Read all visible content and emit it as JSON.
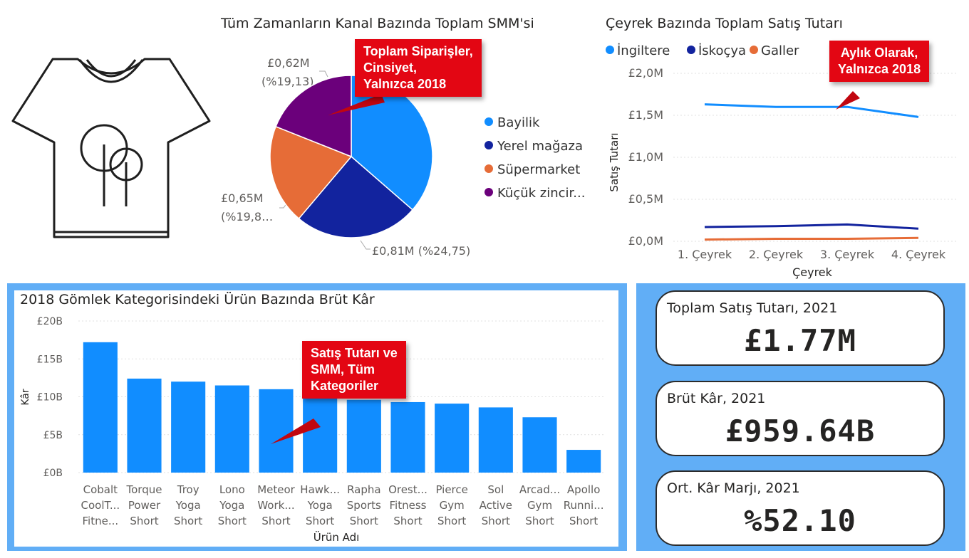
{
  "pie_section": {
    "title": "Tüm Zamanların Kanal Bazında Toplam SMM's​i",
    "callout": [
      "Toplam Siparişler,",
      "Cinsiyet,",
      "Yalnızca 2018"
    ],
    "labels": {
      "l1a": "£0,62M",
      "l1b": "(%19,13)",
      "l2a": "£0,65M",
      "l2b": "(%19,8…",
      "l3": "£0,81M (%24,75)"
    }
  },
  "line_section": {
    "title": "Çeyrek Bazında Toplam Satış Tutarı",
    "callout": [
      "Aylık Olarak,",
      "Yalnızca 2018"
    ]
  },
  "bar_section": {
    "title": "2018 Gömlek Kategorisindeki Ürün Bazında Brüt Kâr",
    "callout": [
      "Satış Tutarı ve",
      "SMM, Tüm",
      "Kategoriler"
    ]
  },
  "kpis": [
    {
      "label": "Toplam Satış Tutarı, 2021",
      "value": "£1.77M"
    },
    {
      "label": "Brüt Kâr, 2021",
      "value": "£959.64B"
    },
    {
      "label": "Ort. Kâr Marjı, 2021",
      "value": "%52.10"
    }
  ],
  "icon": "tshirt-icon",
  "chart_data": [
    {
      "type": "pie",
      "title": "Tüm Zamanların Kanal Bazında Toplam SMM'si",
      "categories": [
        "Bayilik",
        "Yerel mağaza",
        "Süpermarket",
        "Küçük zincir..."
      ],
      "values": [
        1.19,
        0.81,
        0.65,
        0.62
      ],
      "colors": [
        "#118dff",
        "#12239e",
        "#e66c37",
        "#6b007b"
      ]
    },
    {
      "type": "line",
      "title": "Çeyrek Bazında Toplam Satış Tutarı",
      "xlabel": "Çeyrek",
      "ylabel": "Satış Tutarı",
      "categories": [
        "1. Çeyrek",
        "2. Çeyrek",
        "3. Çeyrek",
        "4. Çeyrek"
      ],
      "yticks": [
        "£0,0M",
        "£0,5M",
        "£1,0M",
        "£1,5M",
        "£2,0M"
      ],
      "ylim": [
        0,
        2.0
      ],
      "series": [
        {
          "name": "İngiltere",
          "color": "#118dff",
          "values": [
            1.63,
            1.6,
            1.6,
            1.48
          ]
        },
        {
          "name": "İskoçya",
          "color": "#12239e",
          "values": [
            0.17,
            0.18,
            0.2,
            0.15
          ]
        },
        {
          "name": "Galler",
          "color": "#e66c37",
          "values": [
            0.02,
            0.03,
            0.03,
            0.04
          ]
        }
      ]
    },
    {
      "type": "bar",
      "title": "2018 Gömlek Kategorisindeki Ürün Bazında Brüt Kâr",
      "xlabel": "Ürün Adı",
      "ylabel": "Kâr",
      "yticks": [
        "£0B",
        "£5B",
        "£10B",
        "£15B",
        "£20B"
      ],
      "ylim": [
        0,
        20
      ],
      "color": "#118dff",
      "categories": [
        [
          "Cobalt",
          "CoolT...",
          "Fitne..."
        ],
        [
          "Torque",
          "Power",
          "Short"
        ],
        [
          "Troy",
          "Yoga",
          "Short"
        ],
        [
          "Lono",
          "Yoga",
          "Short"
        ],
        [
          "Meteor",
          "Work...",
          "Short"
        ],
        [
          "Hawk...",
          "Yoga",
          "Short"
        ],
        [
          "Rapha",
          "Sports",
          "Short"
        ],
        [
          "Orest...",
          "Fitness",
          "Short"
        ],
        [
          "Pierce",
          "Gym",
          "Short"
        ],
        [
          "Sol",
          "Active",
          "Short"
        ],
        [
          "Arcad...",
          "Gym",
          "Short"
        ],
        [
          "Apollo",
          "Runni...",
          "Short"
        ]
      ],
      "values": [
        17.2,
        12.4,
        12.0,
        11.5,
        11.0,
        10.4,
        9.6,
        9.3,
        9.1,
        8.6,
        7.3,
        3.0
      ]
    }
  ]
}
